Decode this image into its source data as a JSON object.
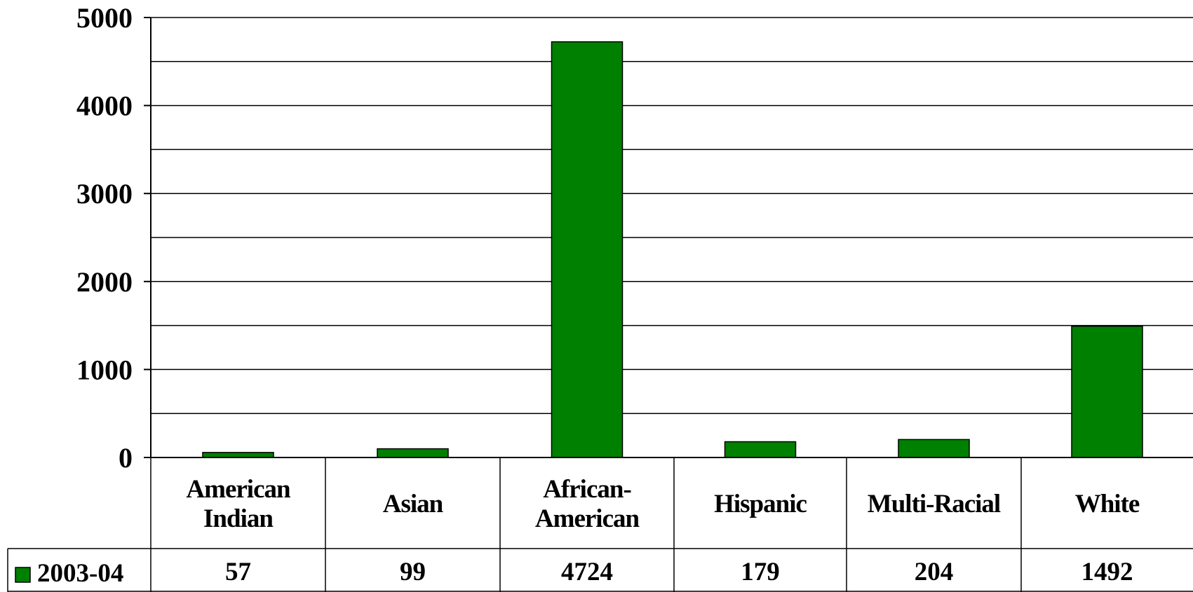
{
  "chart_data": {
    "type": "bar",
    "categories": [
      "American Indian",
      "Asian",
      "African-American",
      "Hispanic",
      "Multi-Racial",
      "White"
    ],
    "category_lines": [
      [
        "American",
        "Indian"
      ],
      [
        "Asian"
      ],
      [
        "African-",
        "American"
      ],
      [
        "Hispanic"
      ],
      [
        "Multi-Racial"
      ],
      [
        "White"
      ]
    ],
    "series": [
      {
        "name": "2003-04",
        "values": [
          57,
          99,
          4724,
          179,
          204,
          1492
        ],
        "color": "#008000"
      }
    ],
    "value_labels": [
      "57",
      "99",
      "4724",
      "179",
      "204",
      "1492"
    ],
    "ylim": [
      0,
      5000
    ],
    "yticks": [
      0,
      1000,
      2000,
      3000,
      4000,
      5000
    ],
    "ytick_labels": [
      "0",
      "1000",
      "2000",
      "3000",
      "4000",
      "5000"
    ],
    "minor_gridlines": [
      500,
      1500,
      2500,
      3500,
      4500
    ],
    "grid": true,
    "legend": "data-table-left",
    "title": "",
    "xlabel": "",
    "ylabel": ""
  }
}
